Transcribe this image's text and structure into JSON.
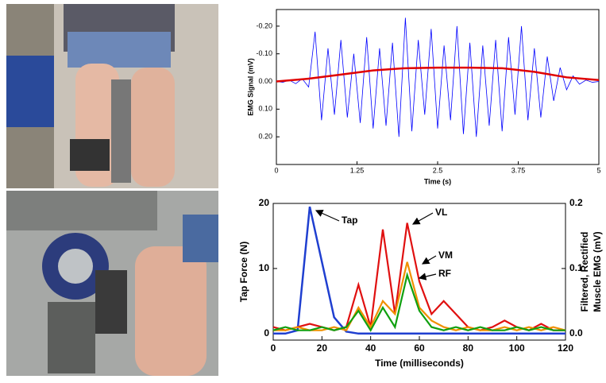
{
  "chart_data": [
    {
      "type": "line",
      "ylabel": "EMG Signal (mV)",
      "xlabel": "Time (s)",
      "xlim": [
        0,
        5
      ],
      "xticks": [
        0,
        1.25,
        2.5,
        3.75,
        5
      ],
      "ylim": [
        -0.26,
        0.3
      ],
      "y_inverted": true,
      "yticks": [
        {
          "value": -0.2,
          "label": "-0.20"
        },
        {
          "value": -0.1,
          "label": "-0.10"
        },
        {
          "value": 0,
          "label": "0.00"
        },
        {
          "value": 0.1,
          "label": "0.10"
        },
        {
          "value": 0.2,
          "label": "0.20"
        }
      ],
      "grid": false,
      "series": [
        {
          "color": "#0000ff",
          "width": 0.8,
          "x": [
            0,
            0.1,
            0.2,
            0.3,
            0.4,
            0.5,
            0.6,
            0.7,
            0.8,
            0.9,
            1,
            1.1,
            1.2,
            1.3,
            1.4,
            1.5,
            1.6,
            1.7,
            1.8,
            1.9,
            2,
            2.1,
            2.2,
            2.3,
            2.4,
            2.5,
            2.6,
            2.7,
            2.8,
            2.9,
            3,
            3.1,
            3.2,
            3.3,
            3.4,
            3.5,
            3.6,
            3.7,
            3.8,
            3.9,
            4,
            4.1,
            4.2,
            4.3,
            4.4,
            4.5,
            4.6,
            4.7,
            4.8,
            4.9,
            5
          ],
          "values": [
            0,
            0.003,
            -0.005,
            0.008,
            -0.01,
            0.02,
            -0.18,
            0.14,
            -0.12,
            0.12,
            -0.15,
            0.13,
            -0.1,
            0.15,
            -0.16,
            0.17,
            -0.12,
            0.16,
            -0.14,
            0.2,
            -0.23,
            0.18,
            -0.15,
            0.12,
            -0.19,
            0.17,
            -0.13,
            0.14,
            -0.2,
            0.19,
            -0.14,
            0.2,
            -0.13,
            0.16,
            -0.15,
            0.18,
            -0.16,
            0.12,
            -0.2,
            0.14,
            -0.12,
            0.13,
            -0.09,
            0.07,
            -0.05,
            0.03,
            -0.02,
            0.01,
            -0.005,
            0.003,
            0
          ]
        },
        {
          "color": "#e00000",
          "width": 2.5,
          "x": [
            0,
            0.5,
            1,
            1.5,
            2,
            2.5,
            3,
            3.5,
            4,
            4.5,
            5
          ],
          "values": [
            0,
            -0.01,
            -0.025,
            -0.04,
            -0.048,
            -0.05,
            -0.05,
            -0.048,
            -0.035,
            -0.015,
            -0.005
          ]
        }
      ]
    },
    {
      "type": "line",
      "ylabel": "Tap Force (N)",
      "y2label": [
        "Filtered, Rectified",
        "Muscle EMG (mV)"
      ],
      "xlabel": "Time (milliseconds)",
      "xlim": [
        0,
        120
      ],
      "xticks": [
        0,
        20,
        40,
        60,
        80,
        100,
        120
      ],
      "ylim": [
        -1,
        20
      ],
      "yticks": [
        0,
        10,
        20
      ],
      "y2lim": [
        -0.01,
        0.2
      ],
      "y2ticks": [
        {
          "value": 0,
          "label": "0.0"
        },
        0.1,
        0.2
      ],
      "grid": false,
      "annotations": [
        "Tap",
        "VL",
        "VM",
        "RF"
      ],
      "series": [
        {
          "name": "Tap",
          "color": "#1f3fd0",
          "width": 2.5,
          "x": [
            0,
            5,
            10,
            15,
            20,
            25,
            30,
            35,
            40,
            45,
            50,
            55,
            60,
            65,
            70,
            75,
            80,
            85,
            90,
            95,
            100,
            105,
            110,
            115,
            120
          ],
          "values": [
            0,
            0,
            0.5,
            19.5,
            11,
            2.5,
            0.3,
            0,
            0,
            0,
            0,
            0,
            0,
            0,
            0,
            0,
            0,
            0,
            0,
            0,
            0,
            0,
            0,
            0,
            0
          ]
        },
        {
          "name": "VL",
          "color": "#e01010",
          "width": 2.2,
          "axis": "y2",
          "x": [
            0,
            5,
            10,
            15,
            20,
            25,
            30,
            35,
            40,
            45,
            50,
            55,
            60,
            65,
            70,
            75,
            80,
            85,
            90,
            95,
            100,
            105,
            110,
            115,
            120
          ],
          "values": [
            0.01,
            0.005,
            0.01,
            0.015,
            0.01,
            0.005,
            0.01,
            0.075,
            0.01,
            0.16,
            0.03,
            0.17,
            0.08,
            0.03,
            0.05,
            0.03,
            0.01,
            0.005,
            0.01,
            0.02,
            0.01,
            0.005,
            0.015,
            0.005,
            0.005
          ]
        },
        {
          "name": "VM",
          "color": "#f09000",
          "width": 2.2,
          "axis": "y2",
          "x": [
            0,
            5,
            10,
            15,
            20,
            25,
            30,
            35,
            40,
            45,
            50,
            55,
            60,
            65,
            70,
            75,
            80,
            85,
            90,
            95,
            100,
            105,
            110,
            115,
            120
          ],
          "values": [
            0.005,
            0.005,
            0.01,
            0.005,
            0.005,
            0.01,
            0.005,
            0.04,
            0.01,
            0.05,
            0.03,
            0.11,
            0.04,
            0.02,
            0.01,
            0.005,
            0.01,
            0.005,
            0.005,
            0.01,
            0.005,
            0.01,
            0.005,
            0.01,
            0.005
          ]
        },
        {
          "name": "RF",
          "color": "#10a010",
          "width": 2.2,
          "axis": "y2",
          "x": [
            0,
            5,
            10,
            15,
            20,
            25,
            30,
            35,
            40,
            45,
            50,
            55,
            60,
            65,
            70,
            75,
            80,
            85,
            90,
            95,
            100,
            105,
            110,
            115,
            120
          ],
          "values": [
            0.005,
            0.01,
            0.005,
            0.005,
            0.01,
            0.005,
            0.01,
            0.035,
            0.005,
            0.04,
            0.01,
            0.09,
            0.035,
            0.01,
            0.005,
            0.01,
            0.005,
            0.01,
            0.005,
            0.005,
            0.01,
            0.005,
            0.01,
            0.005,
            0.005
          ]
        }
      ]
    }
  ]
}
